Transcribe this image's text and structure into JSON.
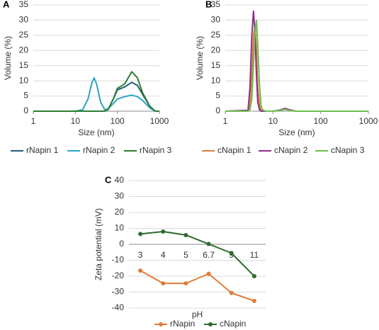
{
  "chart_data": [
    {
      "type": "line",
      "label": "A",
      "xlabel": "Size (nm)",
      "ylabel": "Volume (%)",
      "xscale": "log",
      "xlim": [
        1,
        1000
      ],
      "xticks": [
        1,
        10,
        100,
        1000
      ],
      "ylim": [
        0,
        35
      ],
      "yticks": [
        0,
        5,
        10,
        15,
        20,
        25,
        30,
        35
      ],
      "grid": true,
      "legend": "bottom",
      "x": [
        1,
        10,
        15,
        20,
        25,
        28,
        32,
        40,
        50,
        60,
        80,
        100,
        150,
        220,
        300,
        400,
        600,
        800,
        1000
      ],
      "series": [
        {
          "name": "rNapin 1",
          "color": "#1f5c7a",
          "values": [
            0,
            0,
            0,
            0,
            0,
            0,
            0,
            0,
            0,
            0.5,
            4,
            7,
            8,
            9.5,
            8.5,
            5.5,
            1.5,
            0,
            0
          ]
        },
        {
          "name": "rNapin 2",
          "color": "#2aa5c3",
          "values": [
            0,
            0,
            0.5,
            4,
            9.5,
            11,
            9,
            3,
            0.5,
            0.8,
            2.5,
            4,
            4.8,
            5.3,
            4.8,
            3.5,
            1,
            0,
            0
          ]
        },
        {
          "name": "rNapin 3",
          "color": "#2e7d32",
          "values": [
            0,
            0,
            0,
            0,
            0,
            0,
            0,
            0,
            0,
            0.5,
            4,
            7.5,
            9,
            13,
            11,
            6,
            1.5,
            0,
            0
          ]
        }
      ]
    },
    {
      "type": "line",
      "label": "B",
      "xlabel": "Size (nm)",
      "ylabel": "Volume (%)",
      "xscale": "log",
      "xlim": [
        1,
        1000
      ],
      "xticks": [
        1,
        10,
        100,
        1000
      ],
      "ylim": [
        0,
        35
      ],
      "yticks": [
        0,
        5,
        10,
        15,
        20,
        25,
        30,
        35
      ],
      "grid": true,
      "legend": "bottom",
      "x": [
        1,
        3,
        3.3,
        3.6,
        3.9,
        4.2,
        4.5,
        4.8,
        5.2,
        5.6,
        6,
        7,
        10,
        14,
        18,
        22,
        30,
        100,
        1000
      ],
      "series": [
        {
          "name": "cNapin 1",
          "color": "#e07b39",
          "values": [
            0,
            0,
            2,
            12,
            25,
            28,
            20,
            8,
            2,
            0.3,
            0,
            0,
            0,
            0.3,
            0.7,
            0.4,
            0,
            0,
            0
          ]
        },
        {
          "name": "cNapin 2",
          "color": "#8e2f8f",
          "values": [
            0,
            0.3,
            8,
            25,
            33,
            26,
            12,
            3,
            0.5,
            0,
            0,
            0,
            0,
            0.4,
            0.9,
            0.5,
            0,
            0,
            0
          ]
        },
        {
          "name": "cNapin 3",
          "color": "#6abf4b",
          "values": [
            0,
            0,
            0.5,
            4,
            15,
            26,
            30,
            22,
            9,
            2,
            0.5,
            0,
            0,
            0.3,
            0.6,
            0.3,
            0,
            0,
            0
          ]
        }
      ]
    },
    {
      "type": "line",
      "label": "C",
      "xlabel": "pH",
      "ylabel": "Zeta potential (mV)",
      "markers": true,
      "categories": [
        "3",
        "4",
        "5",
        "6.7",
        "9",
        "11"
      ],
      "ylim": [
        -40,
        40
      ],
      "yticks": [
        -40,
        -30,
        -20,
        -10,
        0,
        10,
        20,
        30,
        40
      ],
      "grid": true,
      "legend": "bottom",
      "series": [
        {
          "name": "rNapin",
          "color": "#e07b39",
          "values": [
            -16.5,
            -24.5,
            -24.5,
            -18.5,
            -30.5,
            -35.5
          ]
        },
        {
          "name": "cNapin",
          "color": "#2e6b2e",
          "values": [
            6.5,
            8,
            5.8,
            0.2,
            -5.5,
            -20
          ]
        }
      ]
    }
  ]
}
